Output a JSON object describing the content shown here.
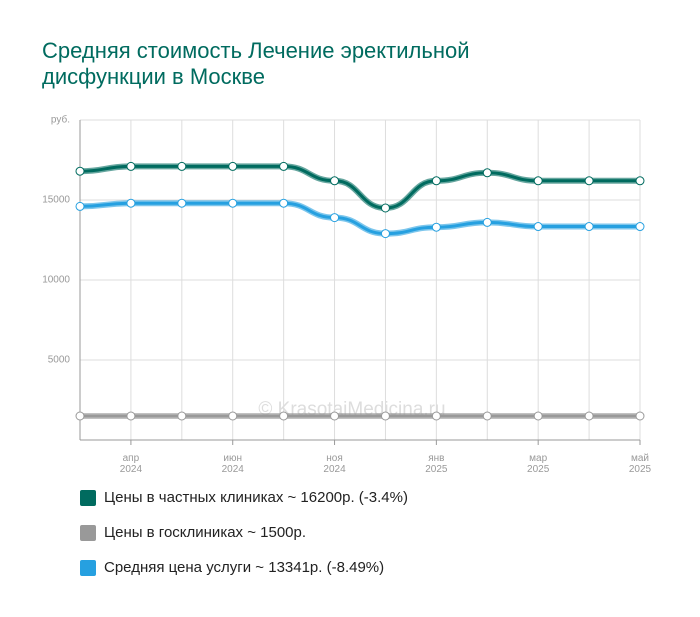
{
  "chart_data": {
    "type": "line",
    "title": "Средняя стоимость Лечение эректильной дисфункции в Москве",
    "y_label": "руб.",
    "watermark": "© KrasotaiMedicina.ru",
    "categories": [
      null,
      "апр 2024",
      null,
      "июн 2024",
      null,
      "ноя 2024",
      null,
      "янв 2025",
      null,
      "мар 2025",
      null,
      "май 2025"
    ],
    "series": [
      {
        "name": "Цены в частных клиниках ~ 16200р. (-3.4%)",
        "color": "#006b5f",
        "values": [
          16800,
          17100,
          17100,
          17100,
          17100,
          16200,
          14500,
          16200,
          16700,
          16200,
          16200,
          16200
        ]
      },
      {
        "name": "Цены в госклиниках ~ 1500р.",
        "color": "#999999",
        "values": [
          1500,
          1500,
          1500,
          1500,
          1500,
          1500,
          1500,
          1500,
          1500,
          1500,
          1500,
          1500
        ]
      },
      {
        "name": "Средняя цена услуги ~ 13341р. (-8.49%)",
        "color": "#26a0e0",
        "values": [
          14600,
          14800,
          14800,
          14800,
          14800,
          13900,
          12900,
          13300,
          13600,
          13341,
          13341,
          13341
        ]
      }
    ],
    "ylim": [
      0,
      20000
    ],
    "yticks": [
      5000,
      10000,
      15000
    ],
    "grid": true
  }
}
